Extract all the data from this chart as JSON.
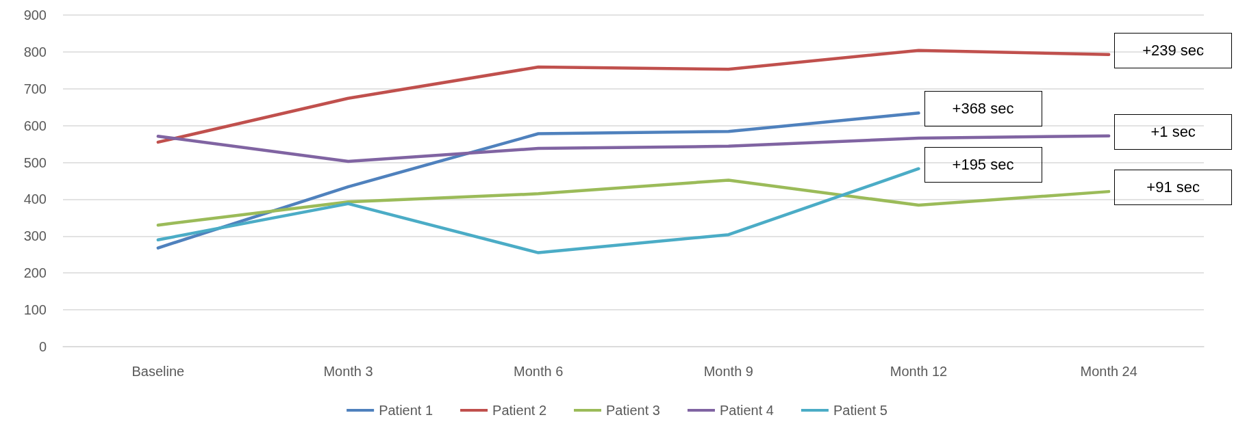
{
  "chart_data": {
    "type": "line",
    "categories": [
      "Baseline",
      "Month 3",
      "Month 6",
      "Month 9",
      "Month 12",
      "Month 24"
    ],
    "series": [
      {
        "name": "Patient 1",
        "color": "#4f81bd",
        "values": [
          268,
          434,
          578,
          584,
          634,
          null
        ]
      },
      {
        "name": "Patient 2",
        "color": "#c0504d",
        "values": [
          555,
          674,
          759,
          753,
          804,
          793
        ]
      },
      {
        "name": "Patient 3",
        "color": "#9bbb59",
        "values": [
          330,
          393,
          415,
          452,
          384,
          421
        ]
      },
      {
        "name": "Patient 4",
        "color": "#8064a2",
        "values": [
          571,
          503,
          538,
          544,
          566,
          572
        ]
      },
      {
        "name": "Patient 5",
        "color": "#4bacc6",
        "values": [
          290,
          388,
          255,
          304,
          483,
          null
        ]
      }
    ],
    "ylim": [
      0,
      900
    ],
    "yticks": [
      0,
      100,
      200,
      300,
      400,
      500,
      600,
      700,
      800,
      900
    ],
    "grid": "y",
    "legend": "bottom",
    "marker": "none",
    "line_style": "solid",
    "annotations": [
      {
        "text": "+239 sec",
        "x": "Month 24",
        "y": 793
      },
      {
        "text": "+368 sec",
        "x": "Month 12",
        "y": 634
      },
      {
        "text": "+1 sec",
        "x": "Month 24",
        "y": 572
      },
      {
        "text": "+195 sec",
        "x": "Month 12",
        "y": 483
      },
      {
        "text": "+91 sec",
        "x": "Month 24",
        "y": 421
      }
    ]
  }
}
